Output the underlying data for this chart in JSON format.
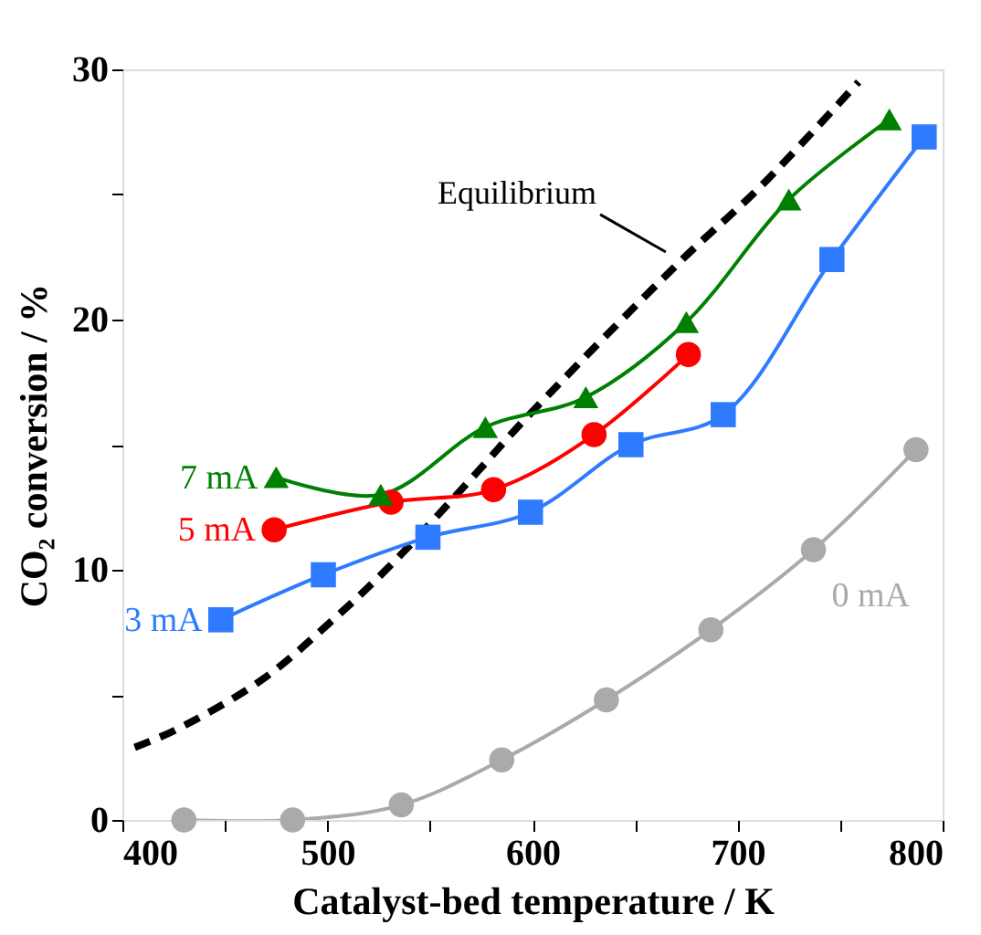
{
  "chart_data": {
    "type": "line",
    "xlabel": "Catalyst-bed temperature / K",
    "ylabel": "CO₂ conversion / %",
    "xlim": [
      400,
      800
    ],
    "ylim": [
      0,
      30
    ],
    "xticks": [
      400,
      {
        "value": 450,
        "label": null
      },
      500,
      {
        "value": 550,
        "label": null
      },
      600,
      {
        "value": 650,
        "label": null
      },
      700,
      {
        "value": 750,
        "label": null
      },
      800
    ],
    "yticks": [
      0,
      {
        "value": 5,
        "label": null
      },
      10,
      {
        "value": 15,
        "label": null
      },
      20,
      {
        "value": 25,
        "label": null
      },
      30
    ],
    "grid": false,
    "series": [
      {
        "name": "Equilibrium",
        "color": "#000000",
        "line_style": "dashed",
        "marker": "none",
        "x": [
          406,
          426,
          468,
          500,
          531,
          573,
          595,
          673,
          711,
          759
        ],
        "values": [
          2.9,
          3.6,
          5.6,
          7.8,
          10.2,
          13.9,
          15.9,
          22.4,
          25.3,
          29.5
        ]
      },
      {
        "name": "7 mA",
        "color": "#008000",
        "line_style": "solid",
        "marker": "triangle",
        "x": [
          475,
          526,
          577,
          626,
          675,
          725,
          774
        ],
        "values": [
          13.7,
          13.0,
          15.7,
          16.9,
          19.9,
          24.8,
          28.0
        ]
      },
      {
        "name": "5 mA",
        "color": "#ff0000",
        "line_style": "solid",
        "marker": "circle",
        "x": [
          474,
          531,
          581,
          630,
          676
        ],
        "values": [
          11.6,
          12.7,
          13.2,
          15.4,
          18.6
        ]
      },
      {
        "name": "3 mA",
        "color": "#2f7bff",
        "line_style": "solid",
        "marker": "square",
        "x": [
          448,
          498,
          549,
          599,
          648,
          693,
          746,
          791
        ],
        "values": [
          8.0,
          9.8,
          11.3,
          12.3,
          15.0,
          16.2,
          22.4,
          27.3
        ]
      },
      {
        "name": "0 mA",
        "color": "#aaaaaa",
        "line_style": "solid",
        "marker": "circle",
        "x": [
          430,
          483,
          536,
          585,
          636,
          687,
          737,
          787
        ],
        "values": [
          0.0,
          0.0,
          0.6,
          2.4,
          4.8,
          7.6,
          10.8,
          14.8
        ]
      }
    ]
  }
}
